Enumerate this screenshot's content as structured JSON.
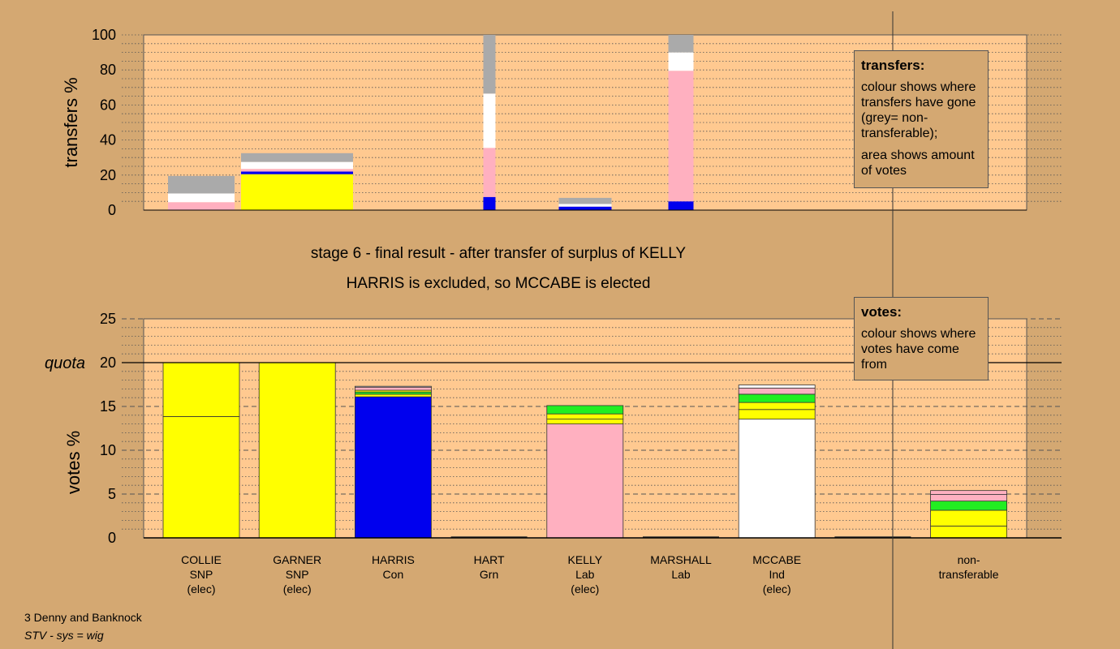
{
  "caption": {
    "line1": "stage 6 - final result - after transfer of surplus of KELLY",
    "line2": "HARRIS is excluded, so MCCABE is elected"
  },
  "footer": {
    "ward": "3 Denny and Banknock",
    "system": "STV - sys = wig"
  },
  "legend_transfers": {
    "title": "transfers:",
    "para1": "colour shows where transfers have gone (grey= non-transferable);",
    "para2": "area shows amount of votes"
  },
  "legend_votes": {
    "title": "votes:",
    "para1": "colour shows where votes have come from"
  },
  "colors": {
    "background": "#d4a872",
    "plot_bg": "#ffc990",
    "SNP": "#ffff00",
    "Con": "#0000ee",
    "Lab": "#ffb0c0",
    "Ind": "#ffffff",
    "Grn": "#22ee22",
    "non_transferable": "#aaaaaa"
  },
  "chart_data": [
    {
      "type": "bar",
      "stacked": true,
      "ylabel": "transfers %",
      "ylim": [
        0,
        100
      ],
      "yticks": [
        0,
        20,
        40,
        60,
        80,
        100
      ],
      "grid": "dotted",
      "categories": [
        "COLLIE",
        "GARNER",
        "HARRIS",
        "HART",
        "KELLY",
        "MARSHALL",
        "MCCABE"
      ],
      "bars": [
        {
          "category": "COLLIE",
          "segments": [
            {
              "color": "Lab",
              "value": 4.5
            },
            {
              "color": "Ind",
              "value": 5
            },
            {
              "color": "non_transferable",
              "value": 10
            }
          ]
        },
        {
          "category": "GARNER",
          "segments": [
            {
              "color": "SNP",
              "value": 20.5
            },
            {
              "color": "Con",
              "value": 1.5
            },
            {
              "color": "Lab",
              "value": 1.5
            },
            {
              "color": "Ind",
              "value": 4
            },
            {
              "color": "non_transferable",
              "value": 5
            }
          ]
        },
        {
          "category": "HART",
          "segments": [
            {
              "color": "Con",
              "value": 7.5
            },
            {
              "color": "Lab",
              "value": 28
            },
            {
              "color": "Ind",
              "value": 31
            },
            {
              "color": "non_transferable",
              "value": 33.5
            }
          ]
        },
        {
          "category": "MARSHALL",
          "segments": [
            {
              "color": "Con",
              "value": 2
            },
            {
              "color": "Ind",
              "value": 1.5
            },
            {
              "color": "non_transferable",
              "value": 3.5
            }
          ]
        },
        {
          "category": "MCCABE",
          "segments": [
            {
              "color": "Con",
              "value": 5
            },
            {
              "color": "Lab",
              "value": 74.5
            },
            {
              "color": "Ind",
              "value": 10.5
            },
            {
              "color": "non_transferable",
              "value": 10
            }
          ]
        }
      ]
    },
    {
      "type": "bar",
      "stacked": true,
      "ylabel": "votes %",
      "ylim": [
        0,
        25
      ],
      "yticks": [
        0,
        5,
        10,
        15,
        20,
        25
      ],
      "quota": {
        "value": 20,
        "label": "quota"
      },
      "grid": "dashed",
      "categories": [
        {
          "name": "COLLIE",
          "party": "SNP",
          "status": "(elec)"
        },
        {
          "name": "GARNER",
          "party": "SNP",
          "status": "(elec)"
        },
        {
          "name": "HARRIS",
          "party": "Con",
          "status": ""
        },
        {
          "name": "HART",
          "party": "Grn",
          "status": ""
        },
        {
          "name": "KELLY",
          "party": "Lab",
          "status": "(elec)"
        },
        {
          "name": "MARSHALL",
          "party": "Lab",
          "status": ""
        },
        {
          "name": "MCCABE",
          "party": "Ind",
          "status": "(elec)"
        },
        {
          "name": "",
          "party": "",
          "status": ""
        },
        {
          "name": "non-",
          "party": "transferable",
          "status": ""
        }
      ],
      "bars": [
        {
          "index": 0,
          "segments": [
            {
              "color": "SNP",
              "value": 13.85
            },
            {
              "color": "SNP",
              "value": 6.15
            }
          ]
        },
        {
          "index": 1,
          "segments": [
            {
              "color": "SNP",
              "value": 20
            }
          ]
        },
        {
          "index": 2,
          "segments": [
            {
              "color": "Con",
              "value": 16.1
            },
            {
              "color": "SNP",
              "value": 0.3
            },
            {
              "color": "Grn",
              "value": 0.25
            },
            {
              "color": "SNP",
              "value": 0.2
            },
            {
              "color": "Lab",
              "value": 0.35
            },
            {
              "color": "Ind",
              "value": 0.1
            }
          ]
        },
        {
          "index": 4,
          "segments": [
            {
              "color": "Lab",
              "value": 13
            },
            {
              "color": "SNP",
              "value": 0.55
            },
            {
              "color": "SNP",
              "value": 0.6
            },
            {
              "color": "Grn",
              "value": 0.95
            }
          ]
        },
        {
          "index": 6,
          "segments": [
            {
              "color": "Ind",
              "value": 13.55
            },
            {
              "color": "SNP",
              "value": 1.1
            },
            {
              "color": "SNP",
              "value": 0.8
            },
            {
              "color": "Grn",
              "value": 0.95
            },
            {
              "color": "Lab",
              "value": 0.7
            },
            {
              "color": "Ind",
              "value": 0.35
            }
          ]
        },
        {
          "index": 8,
          "segments": [
            {
              "color": "SNP",
              "value": 1.35
            },
            {
              "color": "SNP",
              "value": 1.8
            },
            {
              "color": "Grn",
              "value": 1.05
            },
            {
              "color": "Lab",
              "value": 0.75
            },
            {
              "color": "Lab",
              "value": 0.45
            }
          ]
        }
      ]
    }
  ]
}
